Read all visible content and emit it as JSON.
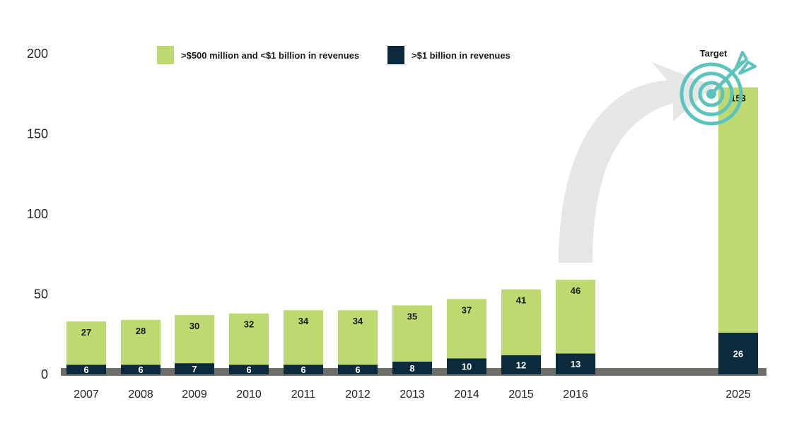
{
  "chart_data": {
    "type": "bar",
    "stacked": true,
    "categories": [
      "2007",
      "2008",
      "2009",
      "2010",
      "2011",
      "2012",
      "2013",
      "2014",
      "2015",
      "2016",
      "2025"
    ],
    "series": [
      {
        "name": ">$1 billion  in revenues",
        "color": "#0b2a3c",
        "label_color": "#ffffff",
        "values": [
          6,
          6,
          7,
          6,
          6,
          6,
          8,
          10,
          12,
          13,
          26
        ]
      },
      {
        "name": ">$500 million and <$1 billion in revenues",
        "color": "#bfd971",
        "label_color": "#1b1b1b",
        "values": [
          27,
          28,
          30,
          32,
          34,
          34,
          35,
          37,
          41,
          46,
          153
        ]
      }
    ],
    "ylim": [
      0,
      200
    ],
    "yticks": [
      0,
      50,
      100,
      150,
      200
    ],
    "legend": {
      "position": "top",
      "order": [
        1,
        0
      ]
    },
    "annotations": [
      {
        "text": "Target",
        "category": "2025",
        "type": "target-icon"
      },
      {
        "type": "arrow",
        "from": "2016",
        "to": "2025"
      }
    ],
    "baseline_color": "#6d6d6a",
    "arrow_color": "#e6e6e5",
    "target_color": "#5cc4bc"
  }
}
